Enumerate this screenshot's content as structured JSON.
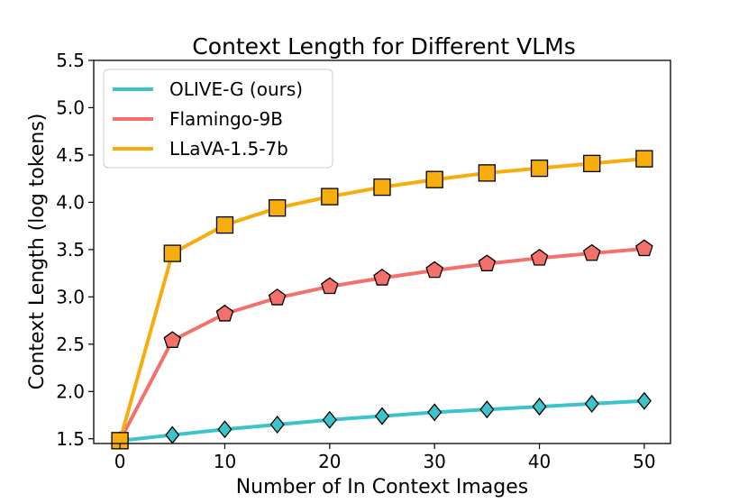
{
  "chart_data": {
    "type": "line",
    "title": "Context Length for Different VLMs",
    "xlabel": "Number of In Context Images",
    "ylabel": "Context Length (log tokens)",
    "xlim": [
      -2.5,
      52.5
    ],
    "ylim": [
      1.45,
      5.5
    ],
    "xticks": [
      "0",
      "10",
      "20",
      "30",
      "40",
      "50"
    ],
    "yticks": [
      "1.5",
      "2.0",
      "2.5",
      "3.0",
      "3.5",
      "4.0",
      "4.5",
      "5.0",
      "5.5"
    ],
    "x": [
      0,
      5,
      10,
      15,
      20,
      25,
      30,
      35,
      40,
      45,
      50
    ],
    "legend_position": "top-left",
    "grid": false,
    "series": [
      {
        "name": "OLIVE-G (ours)",
        "color": "#3cc4cc",
        "marker": "diamond",
        "values": [
          1.48,
          1.54,
          1.6,
          1.65,
          1.7,
          1.74,
          1.78,
          1.81,
          1.84,
          1.87,
          1.9
        ]
      },
      {
        "name": "Flamingo-9B",
        "color": "#f4706a",
        "marker": "pentagon",
        "values": [
          1.48,
          2.54,
          2.82,
          2.99,
          3.11,
          3.2,
          3.28,
          3.35,
          3.41,
          3.46,
          3.51
        ]
      },
      {
        "name": "LLaVA-1.5-7b",
        "color": "#f6ad0d",
        "marker": "square",
        "values": [
          1.48,
          3.46,
          3.76,
          3.94,
          4.06,
          4.16,
          4.24,
          4.31,
          4.36,
          4.41,
          4.46
        ]
      }
    ]
  }
}
